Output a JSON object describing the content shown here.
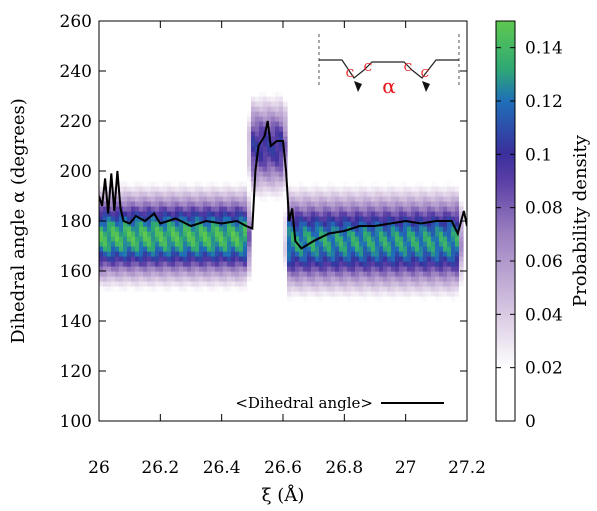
{
  "chart_data": {
    "type": "heatmap",
    "xlabel": "ξ (Å)",
    "ylabel": "Dihedral angle α (degrees)",
    "xlim": [
      26.0,
      27.2
    ],
    "ylim": [
      100,
      260
    ],
    "x_ticks": [
      "26",
      "26.2",
      "26.4",
      "26.6",
      "26.8",
      "27",
      "27.2"
    ],
    "y_ticks": [
      "100",
      "120",
      "140",
      "160",
      "180",
      "200",
      "220",
      "240",
      "260"
    ],
    "colorbar": {
      "label": "Probability density",
      "range": [
        0,
        0.15
      ],
      "ticks": [
        "0",
        "0.02",
        "0.04",
        "0.06",
        "0.08",
        "0.1",
        "0.12",
        "0.14"
      ],
      "colors": [
        "#ffffff",
        "#d8c8e2",
        "#9b7fc0",
        "#4a33a0",
        "#1f6fb8",
        "#2fa874",
        "#5ec850"
      ]
    },
    "density_summary": [
      {
        "x_range": [
          26.0,
          26.48
        ],
        "peak_angle": 174,
        "peak_density": 0.14,
        "spread": 11
      },
      {
        "x_range": [
          26.5,
          26.6
        ],
        "peak_angle": 210,
        "peak_density": 0.1,
        "spread": 12
      },
      {
        "x_range": [
          26.62,
          27.17
        ],
        "peak_angle": 172,
        "peak_density": 0.13,
        "spread": 12
      }
    ],
    "series": [
      {
        "name": "<Dihedral angle>",
        "x": [
          26.0,
          26.01,
          26.02,
          26.03,
          26.04,
          26.05,
          26.06,
          26.07,
          26.08,
          26.1,
          26.12,
          26.15,
          26.18,
          26.2,
          26.25,
          26.3,
          26.35,
          26.4,
          26.45,
          26.48,
          26.5,
          26.51,
          26.52,
          26.53,
          26.54,
          26.55,
          26.56,
          26.58,
          26.6,
          26.61,
          26.62,
          26.63,
          26.64,
          26.66,
          26.7,
          26.75,
          26.8,
          26.85,
          26.9,
          26.95,
          27.0,
          27.05,
          27.1,
          27.15,
          27.17,
          27.19,
          27.2
        ],
        "y": [
          190,
          186,
          197,
          183,
          199,
          184,
          200,
          185,
          180,
          179,
          182,
          180,
          183,
          179,
          181,
          178,
          180,
          179,
          180,
          178,
          177,
          200,
          210,
          212,
          214,
          220,
          210,
          212,
          212,
          200,
          180,
          185,
          172,
          169,
          172,
          175,
          176,
          178,
          178,
          179,
          180,
          179,
          180,
          180,
          175,
          184,
          178
        ]
      }
    ],
    "legend_position": "bottom-right",
    "inset_labels": [
      "C",
      "C",
      "α",
      "C",
      "C"
    ]
  }
}
